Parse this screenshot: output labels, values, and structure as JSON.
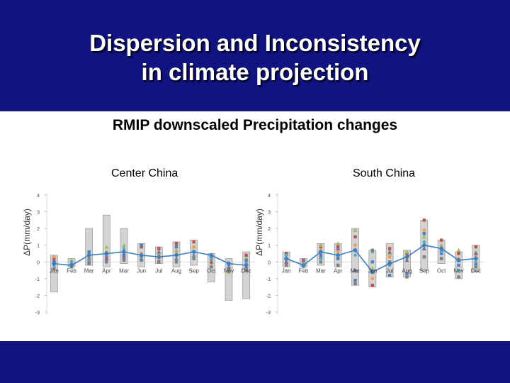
{
  "slide": {
    "title_line1": "Dispersion and Inconsistency",
    "title_line2": "in climate projection",
    "subtitle": "RMIP downscaled Precipitation changes"
  },
  "colors": {
    "header": "#111380",
    "range_box": "#d3d3d3",
    "mean_line": "#3a7fc4",
    "model_markers": [
      "#c0504d",
      "#9bbb59",
      "#f79646",
      "#4f81bd",
      "#8064a2",
      "#4bacc6",
      "#7f7f7f"
    ]
  },
  "chart_data": [
    {
      "type": "bar",
      "title": "Center China",
      "ylabel": "ΔP(mm/day)",
      "categories": [
        "Jan",
        "Feb",
        "Mar",
        "Apr",
        "Mar",
        "Jun",
        "Jul",
        "Aug",
        "Sep",
        "Oct",
        "Nov",
        "Dec"
      ],
      "ylim": [
        -3,
        4
      ],
      "yticks": [
        4,
        3,
        2,
        1,
        0,
        -1,
        -2,
        -3
      ],
      "grid": false,
      "range_min": [
        -1.8,
        -0.3,
        -0.2,
        -0.3,
        -0.1,
        -0.3,
        -0.1,
        -0.3,
        -0.2,
        -1.2,
        -2.3,
        -2.2
      ],
      "range_max": [
        0.4,
        0.2,
        2.0,
        2.8,
        2.0,
        1.1,
        0.9,
        1.2,
        1.3,
        0.5,
        0.2,
        0.6
      ],
      "mean": [
        -0.1,
        -0.2,
        0.4,
        0.5,
        0.6,
        0.4,
        0.3,
        0.4,
        0.6,
        0.4,
        -0.1,
        -0.2
      ],
      "model_points": [
        [
          0.2,
          -0.2,
          0.0,
          0.3,
          0.4,
          0.9,
          0.8,
          1.1,
          1.2,
          0.2,
          -0.4,
          0.4
        ],
        [
          0.0,
          0.1,
          0.3,
          0.9,
          1.0,
          0.4,
          0.5,
          0.7,
          0.9,
          0.1,
          -0.6,
          0.2
        ],
        [
          0.3,
          0.0,
          0.5,
          0.6,
          0.7,
          0.5,
          0.2,
          0.5,
          0.9,
          -0.1,
          -0.2,
          0.0
        ],
        [
          -0.1,
          -0.2,
          0.6,
          0.5,
          0.4,
          1.0,
          0.0,
          0.9,
          0.6,
          0.3,
          -0.1,
          0.1
        ],
        [
          0.1,
          -0.1,
          0.2,
          0.2,
          0.3,
          0.2,
          0.6,
          0.2,
          0.4,
          0.0,
          -0.3,
          -0.3
        ],
        [
          -0.2,
          0.0,
          0.1,
          0.4,
          0.8,
          0.3,
          0.3,
          0.1,
          0.3,
          0.2,
          -0.2,
          -0.1
        ],
        [
          -0.4,
          -0.3,
          -0.1,
          0.0,
          0.1,
          0.1,
          0.0,
          0.0,
          0.2,
          -0.3,
          -0.5,
          -0.5
        ]
      ]
    },
    {
      "type": "bar",
      "title": "South China",
      "ylabel": "ΔP(mm/day)",
      "categories": [
        "Jan",
        "Feb",
        "Mar",
        "Apr",
        "Mar",
        "Jun",
        "Jul",
        "Aug",
        "Sep",
        "Oct",
        "Nov",
        "Dec"
      ],
      "ylim": [
        -3,
        4
      ],
      "yticks": [
        4,
        3,
        2,
        1,
        0,
        -1,
        -2,
        -3
      ],
      "grid": false,
      "range_min": [
        -0.3,
        -0.3,
        -0.2,
        -0.3,
        -1.4,
        -1.5,
        -0.9,
        -0.9,
        -0.5,
        -0.1,
        -1.0,
        -0.6
      ],
      "range_max": [
        0.6,
        0.2,
        1.1,
        1.1,
        2.0,
        0.7,
        1.1,
        0.7,
        2.5,
        1.3,
        0.6,
        1.0
      ],
      "mean": [
        0.2,
        -0.2,
        0.6,
        0.4,
        0.7,
        -0.6,
        -0.1,
        0.3,
        1.0,
        0.8,
        0.1,
        0.2
      ],
      "model_points": [
        [
          0.5,
          0.1,
          0.9,
          0.9,
          1.5,
          -1.4,
          0.8,
          0.5,
          2.5,
          1.3,
          0.5,
          0.9
        ],
        [
          0.3,
          0.0,
          1.0,
          1.1,
          1.9,
          -0.4,
          0.5,
          0.6,
          1.5,
          1.0,
          0.7,
          0.6
        ],
        [
          0.1,
          -0.1,
          0.7,
          0.6,
          1.0,
          -1.0,
          0.3,
          0.2,
          1.9,
          0.9,
          0.2,
          0.3
        ],
        [
          -0.1,
          -0.2,
          0.4,
          0.2,
          -1.1,
          0.0,
          -0.8,
          -0.7,
          1.7,
          0.5,
          -0.2,
          -0.1
        ],
        [
          0.0,
          0.1,
          0.3,
          0.8,
          -0.5,
          -0.6,
          0.6,
          0.1,
          0.8,
          0.7,
          0.1,
          0.5
        ],
        [
          0.4,
          -0.3,
          0.2,
          0.4,
          0.4,
          0.6,
          -0.2,
          0.3,
          1.2,
          0.6,
          -0.5,
          0.0
        ],
        [
          -0.2,
          -0.2,
          0.0,
          -0.2,
          -1.3,
          0.7,
          0.0,
          -0.9,
          0.3,
          0.2,
          -0.9,
          -0.3
        ]
      ]
    }
  ]
}
